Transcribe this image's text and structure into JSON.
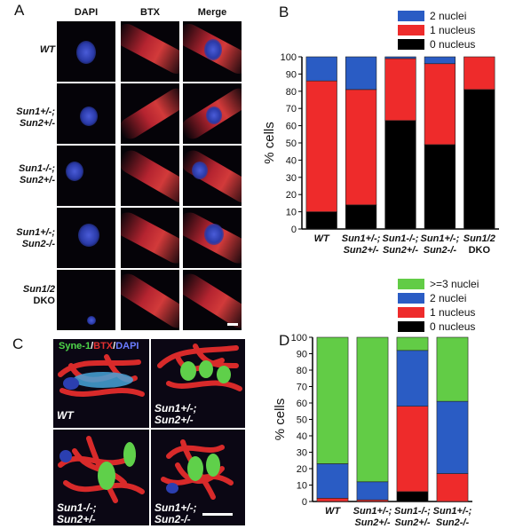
{
  "panels": {
    "a": "A",
    "b": "B",
    "c": "C",
    "d": "D"
  },
  "panel_a": {
    "columns": [
      "DAPI",
      "BTX",
      "Merge"
    ],
    "rows": [
      {
        "line1": "WT",
        "line2": ""
      },
      {
        "line1": "Sun1+/-;",
        "line2": "Sun2+/-"
      },
      {
        "line1": "Sun1-/-;",
        "line2": "Sun2+/-"
      },
      {
        "line1": "Sun1+/-;",
        "line2": "Sun2-/-"
      },
      {
        "line1": "Sun1/2",
        "line2": "DKO"
      }
    ]
  },
  "panel_c": {
    "title_parts": [
      "Syne-1",
      "/",
      "BTX",
      "/",
      "DAPI"
    ],
    "title_colors": [
      "#4fd84a",
      "#ffffff",
      "#e23030",
      "#ffffff",
      "#6a7cff"
    ],
    "labels": [
      {
        "line1": "WT",
        "line2": ""
      },
      {
        "line1": "Sun1+/-;",
        "line2": "Sun2+/-"
      },
      {
        "line1": "Sun1-/-;",
        "line2": "Sun2+/-"
      },
      {
        "line1": "Sun1+/-;",
        "line2": "Sun2-/-"
      }
    ]
  },
  "chart_data": [
    {
      "type": "bar",
      "stacked": true,
      "ylabel": "% cells",
      "ylim": [
        0,
        100
      ],
      "yticks": [
        0,
        10,
        20,
        30,
        40,
        50,
        60,
        70,
        80,
        90,
        100
      ],
      "categories": [
        {
          "line1": "WT",
          "line2": ""
        },
        {
          "line1": "Sun1+/-;",
          "line2": "Sun2+/-"
        },
        {
          "line1": "Sun1-/-;",
          "line2": "Sun2+/-"
        },
        {
          "line1": "Sun1+/-;",
          "line2": "Sun2-/-"
        },
        {
          "line1": "Sun1/2",
          "line2": "DKO"
        }
      ],
      "series": [
        {
          "name": "0 nucleus",
          "color": "#000000",
          "values": [
            10,
            14,
            63,
            49,
            81
          ]
        },
        {
          "name": "1 nucleus",
          "color": "#ee2b2b",
          "values": [
            76,
            67,
            36,
            47,
            19
          ]
        },
        {
          "name": "2 nuclei",
          "color": "#2a5cc4",
          "values": [
            14,
            19,
            1,
            4,
            0
          ]
        }
      ],
      "legend_order": [
        "2 nuclei",
        "1 nucleus",
        "0 nucleus"
      ],
      "legend_position": "top"
    },
    {
      "type": "bar",
      "stacked": true,
      "ylabel": "% cells",
      "ylim": [
        0,
        100
      ],
      "yticks": [
        0,
        10,
        20,
        30,
        40,
        50,
        60,
        70,
        80,
        90,
        100
      ],
      "categories": [
        {
          "line1": "WT",
          "line2": ""
        },
        {
          "line1": "Sun1+/-;",
          "line2": "Sun2+/-"
        },
        {
          "line1": "Sun1-/-;",
          "line2": "Sun2+/-"
        },
        {
          "line1": "Sun1+/-;",
          "line2": "Sun2-/-"
        }
      ],
      "series": [
        {
          "name": "0 nucleus",
          "color": "#000000",
          "values": [
            0,
            0,
            6,
            0
          ]
        },
        {
          "name": "1 nucleus",
          "color": "#ee2b2b",
          "values": [
            2,
            1,
            52,
            17
          ]
        },
        {
          "name": "2 nuclei",
          "color": "#2a5cc4",
          "values": [
            21,
            11,
            34,
            44
          ]
        },
        {
          "name": ">=3 nuclei",
          "color": "#62cc46",
          "values": [
            77,
            88,
            8,
            39
          ]
        }
      ],
      "legend_order": [
        ">=3 nuclei",
        "2 nuclei",
        "1 nucleus",
        "0 nucleus"
      ],
      "legend_position": "top"
    }
  ]
}
